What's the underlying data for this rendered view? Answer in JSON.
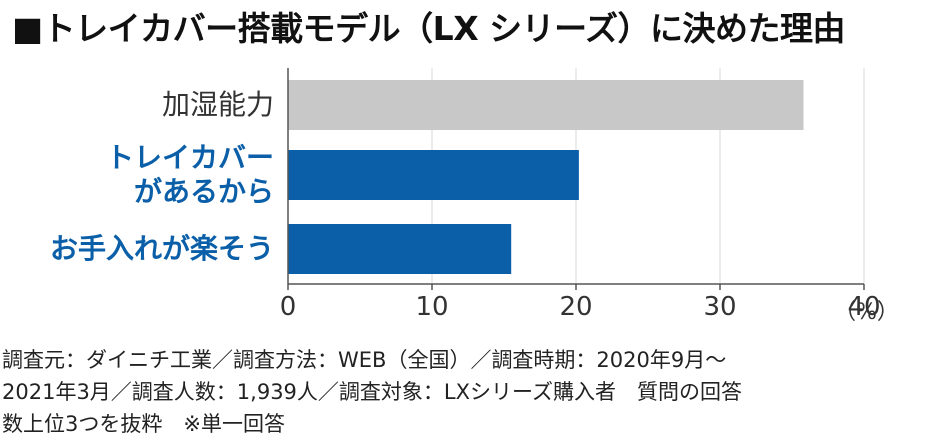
{
  "title": "■トレイカバー搭載モデル（LX シリーズ）に決めた理由",
  "colors": {
    "highlight": "#0a5fa8",
    "neutral": "#c8c8c8",
    "axis": "#555555"
  },
  "chart_data": {
    "type": "bar",
    "orientation": "horizontal",
    "categories": [
      "加湿能力",
      "トレイカバーがあるから",
      "お手入れが楽そう"
    ],
    "category_lines": [
      [
        "加湿能力"
      ],
      [
        "トレイカバー",
        "があるから"
      ],
      [
        "お手入れが楽そう"
      ]
    ],
    "values": [
      35.8,
      20.2,
      15.5
    ],
    "highlighted": [
      false,
      true,
      true
    ],
    "xlim": [
      0,
      40
    ],
    "xticks": [
      "0",
      "10",
      "20",
      "30",
      "40"
    ],
    "xunit": "（%）",
    "grid": true
  },
  "note": {
    "lines": [
      "調査元：ダイニチ工業／調査方法：WEB（全国）／調査時期：2020年9月～",
      "2021年3月／調査人数：1,939人／調査対象：LXシリーズ購入者　質問の回答",
      "数上位3つを抜粋　※単一回答"
    ]
  }
}
